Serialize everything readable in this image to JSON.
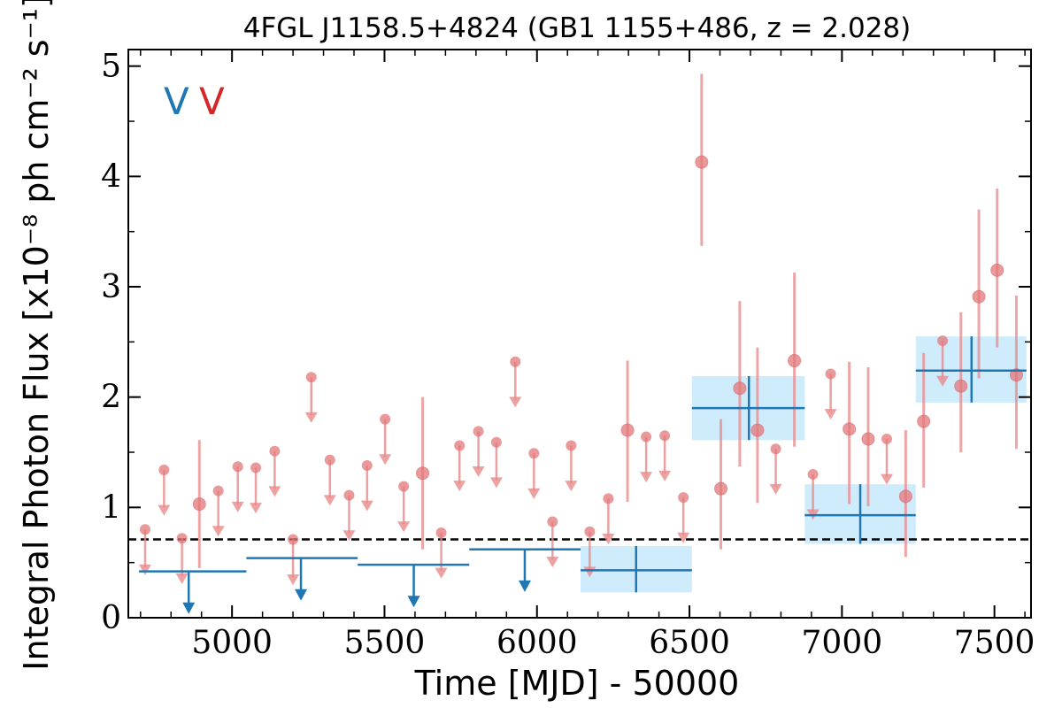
{
  "chart_data": {
    "type": "scatter",
    "title": "4FGL J1158.5+4824 (GB1 1155+486, z = 2.028)",
    "xlabel": "Time [MJD] - 50000",
    "ylabel": "Integral Photon Flux [x10⁻⁸ ph cm⁻² s⁻¹]",
    "xlim": [
      4660,
      7620
    ],
    "ylim": [
      0,
      5.15
    ],
    "xticks": [
      5000,
      5500,
      6000,
      6500,
      7000,
      7500
    ],
    "xtick_labels": [
      "5000",
      "5500",
      "6000",
      "6500",
      "7000",
      "7500"
    ],
    "yticks": [
      0,
      1,
      2,
      3,
      4,
      5
    ],
    "ytick_labels": [
      "0",
      "1",
      "2",
      "3",
      "4",
      "5"
    ],
    "grid": false,
    "legend_position": "top-left",
    "legend_marks": [
      {
        "text": "V",
        "color": "#1f77b4"
      },
      {
        "text": "V",
        "color": "#d62728"
      }
    ],
    "reference_line": {
      "y": 0.71,
      "style": "dashed",
      "color": "#000000"
    },
    "series": [
      {
        "color": "#e8898a",
        "kind": "short-bin detections",
        "points": [
          {
            "x": 4893,
            "y": 1.03,
            "ylo": 0.45,
            "yhi": 1.61
          },
          {
            "x": 5625,
            "y": 1.31,
            "ylo": 0.62,
            "yhi": 2.0
          },
          {
            "x": 6297,
            "y": 1.7,
            "ylo": 1.05,
            "yhi": 2.33
          },
          {
            "x": 6540,
            "y": 4.13,
            "ylo": 3.37,
            "yhi": 4.93
          },
          {
            "x": 6603,
            "y": 1.17,
            "ylo": 0.62,
            "yhi": 1.8
          },
          {
            "x": 6665,
            "y": 2.08,
            "ylo": 1.37,
            "yhi": 2.87
          },
          {
            "x": 6723,
            "y": 1.7,
            "ylo": 1.04,
            "yhi": 2.45
          },
          {
            "x": 6844,
            "y": 2.33,
            "ylo": 1.55,
            "yhi": 3.13
          },
          {
            "x": 7024,
            "y": 1.71,
            "ylo": 1.03,
            "yhi": 2.32
          },
          {
            "x": 7086,
            "y": 1.62,
            "ylo": 1.01,
            "yhi": 2.27
          },
          {
            "x": 7209,
            "y": 1.1,
            "ylo": 0.55,
            "yhi": 1.7
          },
          {
            "x": 7268,
            "y": 1.78,
            "ylo": 1.18,
            "yhi": 2.4
          },
          {
            "x": 7390,
            "y": 2.1,
            "ylo": 1.5,
            "yhi": 2.77
          },
          {
            "x": 7449,
            "y": 2.91,
            "ylo": 2.17,
            "yhi": 3.7
          },
          {
            "x": 7509,
            "y": 3.15,
            "ylo": 2.45,
            "yhi": 3.89
          },
          {
            "x": 7572,
            "y": 2.2,
            "ylo": 1.53,
            "yhi": 2.92
          }
        ]
      },
      {
        "color": "#e8898a",
        "kind": "short-bin upper limits",
        "points": [
          {
            "x": 4715,
            "y": 0.8
          },
          {
            "x": 4777,
            "y": 1.34
          },
          {
            "x": 4836,
            "y": 0.72
          },
          {
            "x": 4955,
            "y": 1.15
          },
          {
            "x": 5019,
            "y": 1.37
          },
          {
            "x": 5078,
            "y": 1.36
          },
          {
            "x": 5140,
            "y": 1.51
          },
          {
            "x": 5200,
            "y": 0.71
          },
          {
            "x": 5260,
            "y": 2.18
          },
          {
            "x": 5321,
            "y": 1.43
          },
          {
            "x": 5384,
            "y": 1.11
          },
          {
            "x": 5443,
            "y": 1.38
          },
          {
            "x": 5502,
            "y": 1.8
          },
          {
            "x": 5563,
            "y": 1.19
          },
          {
            "x": 5686,
            "y": 0.77
          },
          {
            "x": 5746,
            "y": 1.56
          },
          {
            "x": 5808,
            "y": 1.69
          },
          {
            "x": 5867,
            "y": 1.59
          },
          {
            "x": 5929,
            "y": 2.32
          },
          {
            "x": 5990,
            "y": 1.49
          },
          {
            "x": 6051,
            "y": 0.87
          },
          {
            "x": 6112,
            "y": 1.56
          },
          {
            "x": 6173,
            "y": 0.78
          },
          {
            "x": 6234,
            "y": 1.08
          },
          {
            "x": 6358,
            "y": 1.64
          },
          {
            "x": 6419,
            "y": 1.65
          },
          {
            "x": 6480,
            "y": 1.09
          },
          {
            "x": 6783,
            "y": 1.53
          },
          {
            "x": 6905,
            "y": 1.3
          },
          {
            "x": 6963,
            "y": 2.21
          },
          {
            "x": 7147,
            "y": 1.62
          },
          {
            "x": 7330,
            "y": 2.51
          }
        ]
      },
      {
        "color": "#1f77b4",
        "kind": "long-bin detections",
        "points": [
          {
            "x": 6325,
            "x0": 6143,
            "x1": 6508,
            "y": 0.43,
            "ylo": 0.23,
            "yhi": 0.65
          },
          {
            "x": 6695,
            "x0": 6508,
            "x1": 6878,
            "y": 1.9,
            "ylo": 1.61,
            "yhi": 2.19
          },
          {
            "x": 7060,
            "x0": 6878,
            "x1": 7242,
            "y": 0.93,
            "ylo": 0.67,
            "yhi": 1.21
          },
          {
            "x": 7425,
            "x0": 7242,
            "x1": 7605,
            "y": 2.24,
            "ylo": 1.95,
            "yhi": 2.55
          }
        ]
      },
      {
        "color": "#1f77b4",
        "kind": "long-bin upper limits",
        "points": [
          {
            "x0": 4695,
            "x1": 5047,
            "y": 0.42,
            "ax": 4858
          },
          {
            "x0": 5047,
            "x1": 5412,
            "y": 0.54,
            "ax": 5226
          },
          {
            "x0": 5412,
            "x1": 5778,
            "y": 0.48,
            "ax": 5596
          },
          {
            "x0": 5778,
            "x1": 6143,
            "y": 0.62,
            "ax": 5960
          }
        ]
      }
    ]
  }
}
